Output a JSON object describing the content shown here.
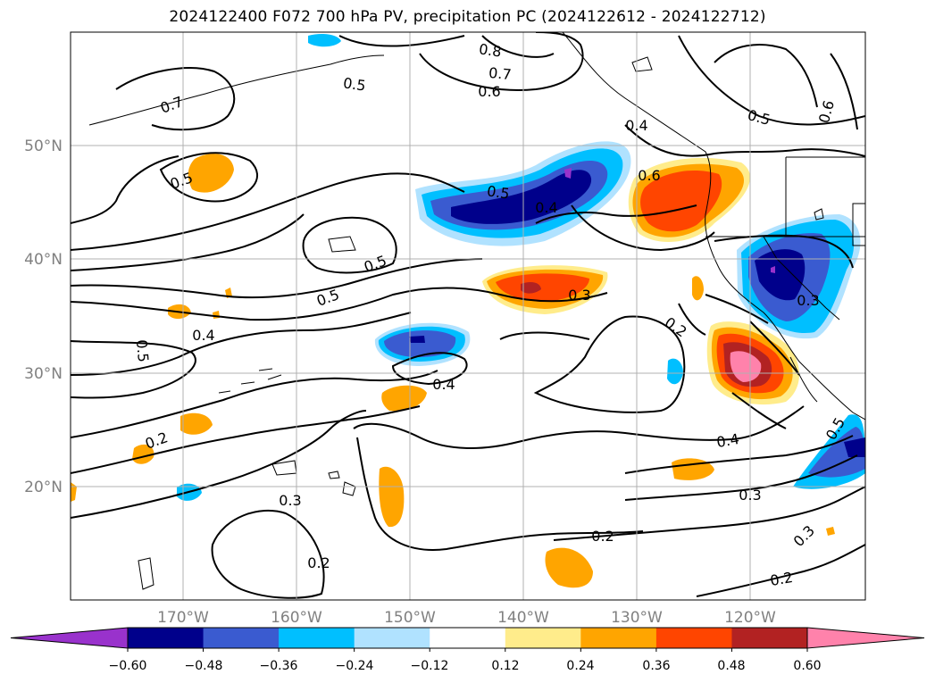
{
  "title": "2024122400 F072 700 hPa PV, precipitation PC (2024122612 - 2024122712)",
  "lat_labels": [
    "50°N",
    "40°N",
    "30°N",
    "20°N"
  ],
  "lon_labels": [
    "170°W",
    "160°W",
    "150°W",
    "140°W",
    "130°W",
    "120°W"
  ],
  "contour_labels": [
    "0.8",
    "0.7",
    "0.6",
    "0.5",
    "0.7",
    "0.4",
    "0.5",
    "0.5",
    "0.6",
    "0.5",
    "0.5",
    "0.6",
    "0.5",
    "0.4",
    "0.3",
    "0.4",
    "0.5",
    "0.2",
    "0.4",
    "0.3",
    "0.4",
    "0.2",
    "0.5",
    "0.3",
    "0.3",
    "0.2",
    "0.2",
    "0.3",
    "0.2"
  ],
  "colorbar": {
    "ticks": [
      "−0.60",
      "−0.48",
      "−0.36",
      "−0.24",
      "−0.12",
      "0.12",
      "0.24",
      "0.36",
      "0.48",
      "0.60"
    ],
    "colors": [
      "#9932cc",
      "#00008b",
      "#3a5bd0",
      "#00bfff",
      "#b0e2ff",
      "#ffffff",
      "#ffec8b",
      "#ffa500",
      "#ff4500",
      "#b22222",
      "#ff82ab"
    ]
  },
  "legend_colors": {
    "neg_extreme": "#9932cc",
    "neg_strong": "#00008b",
    "neg_med": "#3a5bd0",
    "neg_weak": "#00bfff",
    "neg_faint": "#b0e2ff",
    "pos_faint": "#ffec8b",
    "pos_weak": "#ffa500",
    "pos_med": "#ff4500",
    "pos_strong": "#b22222",
    "pos_extreme": "#ff82ab"
  }
}
